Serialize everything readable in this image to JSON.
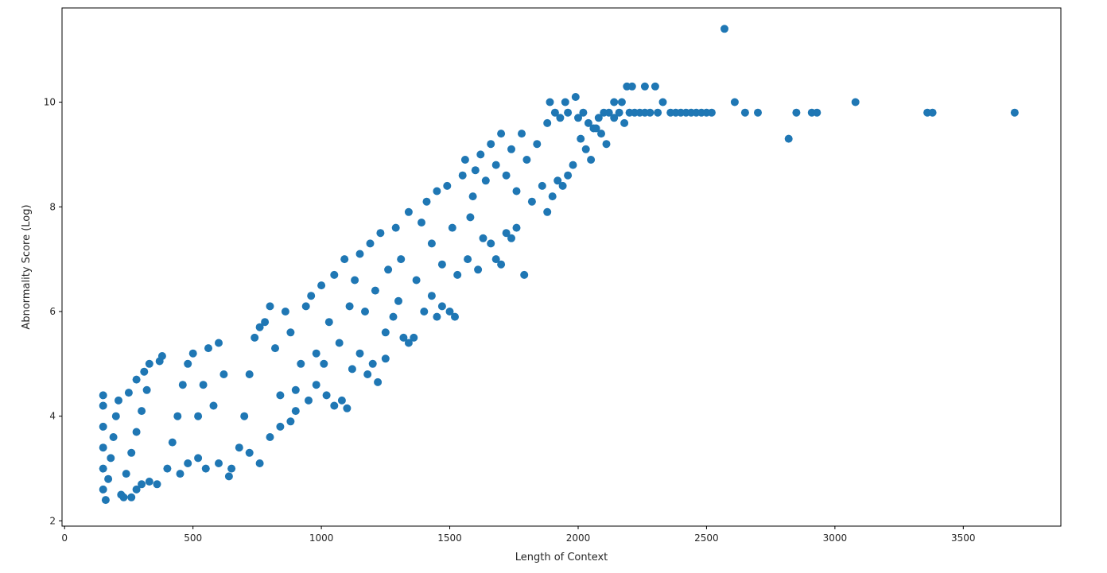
{
  "chart_data": {
    "type": "scatter",
    "title": "",
    "xlabel": "Length of Context",
    "ylabel": "Abnormality Score (Log)",
    "xlim": [
      -10,
      3880
    ],
    "ylim": [
      1.9,
      11.8
    ],
    "xticks": [
      0,
      500,
      1000,
      1500,
      2000,
      2500,
      3000,
      3500
    ],
    "yticks": [
      2,
      4,
      6,
      8,
      10
    ],
    "grid": false,
    "legend": "none",
    "marker_color": "#1f77b4",
    "series": [
      {
        "points": [
          [
            150,
            2.6
          ],
          [
            150,
            3.0
          ],
          [
            150,
            3.4
          ],
          [
            150,
            3.8
          ],
          [
            150,
            4.2
          ],
          [
            150,
            4.4
          ],
          [
            160,
            2.4
          ],
          [
            170,
            2.8
          ],
          [
            180,
            3.2
          ],
          [
            190,
            3.6
          ],
          [
            200,
            4.0
          ],
          [
            210,
            4.3
          ],
          [
            220,
            2.5
          ],
          [
            240,
            2.9
          ],
          [
            260,
            3.3
          ],
          [
            280,
            3.7
          ],
          [
            300,
            4.1
          ],
          [
            320,
            4.5
          ],
          [
            230,
            2.45
          ],
          [
            260,
            2.45
          ],
          [
            280,
            2.6
          ],
          [
            300,
            2.7
          ],
          [
            330,
            2.75
          ],
          [
            360,
            2.7
          ],
          [
            250,
            4.45
          ],
          [
            280,
            4.7
          ],
          [
            310,
            4.85
          ],
          [
            330,
            5.0
          ],
          [
            370,
            5.05
          ],
          [
            380,
            5.15
          ],
          [
            400,
            3.0
          ],
          [
            420,
            3.5
          ],
          [
            440,
            4.0
          ],
          [
            460,
            4.6
          ],
          [
            480,
            5.0
          ],
          [
            500,
            5.2
          ],
          [
            450,
            2.9
          ],
          [
            480,
            3.1
          ],
          [
            520,
            3.2
          ],
          [
            550,
            3.0
          ],
          [
            600,
            3.1
          ],
          [
            640,
            2.85
          ],
          [
            520,
            4.0
          ],
          [
            540,
            4.6
          ],
          [
            560,
            5.3
          ],
          [
            580,
            4.2
          ],
          [
            600,
            5.4
          ],
          [
            620,
            4.8
          ],
          [
            650,
            3.0
          ],
          [
            680,
            3.4
          ],
          [
            700,
            4.0
          ],
          [
            720,
            4.8
          ],
          [
            740,
            5.5
          ],
          [
            760,
            5.7
          ],
          [
            720,
            3.3
          ],
          [
            760,
            3.1
          ],
          [
            800,
            3.6
          ],
          [
            840,
            3.8
          ],
          [
            880,
            3.9
          ],
          [
            900,
            4.1
          ],
          [
            780,
            5.8
          ],
          [
            800,
            6.1
          ],
          [
            820,
            5.3
          ],
          [
            840,
            4.4
          ],
          [
            860,
            6.0
          ],
          [
            880,
            5.6
          ],
          [
            900,
            4.5
          ],
          [
            920,
            5.0
          ],
          [
            940,
            6.1
          ],
          [
            960,
            6.3
          ],
          [
            980,
            5.2
          ],
          [
            1000,
            6.5
          ],
          [
            950,
            4.3
          ],
          [
            980,
            4.6
          ],
          [
            1020,
            4.4
          ],
          [
            1050,
            4.2
          ],
          [
            1080,
            4.3
          ],
          [
            1100,
            4.15
          ],
          [
            1010,
            5.0
          ],
          [
            1030,
            5.8
          ],
          [
            1050,
            6.7
          ],
          [
            1070,
            5.4
          ],
          [
            1090,
            7.0
          ],
          [
            1110,
            6.1
          ],
          [
            1120,
            4.9
          ],
          [
            1150,
            5.2
          ],
          [
            1180,
            4.8
          ],
          [
            1200,
            5.0
          ],
          [
            1250,
            5.1
          ],
          [
            1220,
            4.65
          ],
          [
            1130,
            6.6
          ],
          [
            1150,
            7.1
          ],
          [
            1170,
            6.0
          ],
          [
            1190,
            7.3
          ],
          [
            1210,
            6.4
          ],
          [
            1230,
            7.5
          ],
          [
            1250,
            5.6
          ],
          [
            1280,
            5.9
          ],
          [
            1300,
            6.2
          ],
          [
            1320,
            5.5
          ],
          [
            1340,
            5.4
          ],
          [
            1360,
            5.5
          ],
          [
            1260,
            6.8
          ],
          [
            1290,
            7.6
          ],
          [
            1310,
            7.0
          ],
          [
            1340,
            7.9
          ],
          [
            1370,
            6.6
          ],
          [
            1390,
            7.7
          ],
          [
            1400,
            6.0
          ],
          [
            1430,
            6.3
          ],
          [
            1450,
            5.9
          ],
          [
            1470,
            6.1
          ],
          [
            1500,
            6.0
          ],
          [
            1520,
            5.9
          ],
          [
            1410,
            8.1
          ],
          [
            1430,
            7.3
          ],
          [
            1450,
            8.3
          ],
          [
            1470,
            6.9
          ],
          [
            1490,
            8.4
          ],
          [
            1510,
            7.6
          ],
          [
            1530,
            6.7
          ],
          [
            1550,
            8.6
          ],
          [
            1570,
            7.0
          ],
          [
            1590,
            8.2
          ],
          [
            1610,
            6.8
          ],
          [
            1630,
            7.4
          ],
          [
            1560,
            8.9
          ],
          [
            1580,
            7.8
          ],
          [
            1600,
            8.7
          ],
          [
            1620,
            9.0
          ],
          [
            1640,
            8.5
          ],
          [
            1660,
            7.3
          ],
          [
            1680,
            7.0
          ],
          [
            1700,
            6.9
          ],
          [
            1720,
            7.5
          ],
          [
            1740,
            7.4
          ],
          [
            1760,
            7.6
          ],
          [
            1790,
            6.7
          ],
          [
            1660,
            9.2
          ],
          [
            1680,
            8.8
          ],
          [
            1700,
            9.4
          ],
          [
            1720,
            8.6
          ],
          [
            1740,
            9.1
          ],
          [
            1760,
            8.3
          ],
          [
            1780,
            9.4
          ],
          [
            1800,
            8.9
          ],
          [
            1820,
            8.1
          ],
          [
            1840,
            9.2
          ],
          [
            1860,
            8.4
          ],
          [
            1880,
            9.6
          ],
          [
            1880,
            7.9
          ],
          [
            1900,
            8.2
          ],
          [
            1920,
            8.5
          ],
          [
            1940,
            8.4
          ],
          [
            1960,
            8.6
          ],
          [
            1980,
            8.8
          ],
          [
            1890,
            10.0
          ],
          [
            1910,
            9.8
          ],
          [
            1930,
            9.7
          ],
          [
            1950,
            10.0
          ],
          [
            1960,
            9.8
          ],
          [
            1990,
            10.1
          ],
          [
            2000,
            9.7
          ],
          [
            2020,
            9.8
          ],
          [
            2040,
            9.6
          ],
          [
            2060,
            9.5
          ],
          [
            2080,
            9.7
          ],
          [
            2100,
            9.8
          ],
          [
            2010,
            9.3
          ],
          [
            2030,
            9.1
          ],
          [
            2050,
            8.9
          ],
          [
            2070,
            9.5
          ],
          [
            2090,
            9.4
          ],
          [
            2110,
            9.2
          ],
          [
            2120,
            9.8
          ],
          [
            2140,
            9.7
          ],
          [
            2160,
            9.8
          ],
          [
            2180,
            9.6
          ],
          [
            2200,
            9.8
          ],
          [
            2220,
            9.8
          ],
          [
            2140,
            10.0
          ],
          [
            2170,
            10.0
          ],
          [
            2190,
            10.3
          ],
          [
            2210,
            10.3
          ],
          [
            2260,
            10.3
          ],
          [
            2300,
            10.3
          ],
          [
            2240,
            9.8
          ],
          [
            2260,
            9.8
          ],
          [
            2280,
            9.8
          ],
          [
            2310,
            9.8
          ],
          [
            2330,
            10.0
          ],
          [
            2360,
            9.8
          ],
          [
            2380,
            9.8
          ],
          [
            2400,
            9.8
          ],
          [
            2420,
            9.8
          ],
          [
            2440,
            9.8
          ],
          [
            2460,
            9.8
          ],
          [
            2480,
            9.8
          ],
          [
            2500,
            9.8
          ],
          [
            2520,
            9.8
          ],
          [
            2570,
            11.4
          ],
          [
            2610,
            10.0
          ],
          [
            2650,
            9.8
          ],
          [
            2700,
            9.8
          ],
          [
            2820,
            9.3
          ],
          [
            2850,
            9.8
          ],
          [
            2910,
            9.8
          ],
          [
            2930,
            9.8
          ],
          [
            3080,
            10.0
          ],
          [
            3360,
            9.8
          ],
          [
            3380,
            9.8
          ],
          [
            3700,
            9.8
          ]
        ]
      }
    ]
  }
}
